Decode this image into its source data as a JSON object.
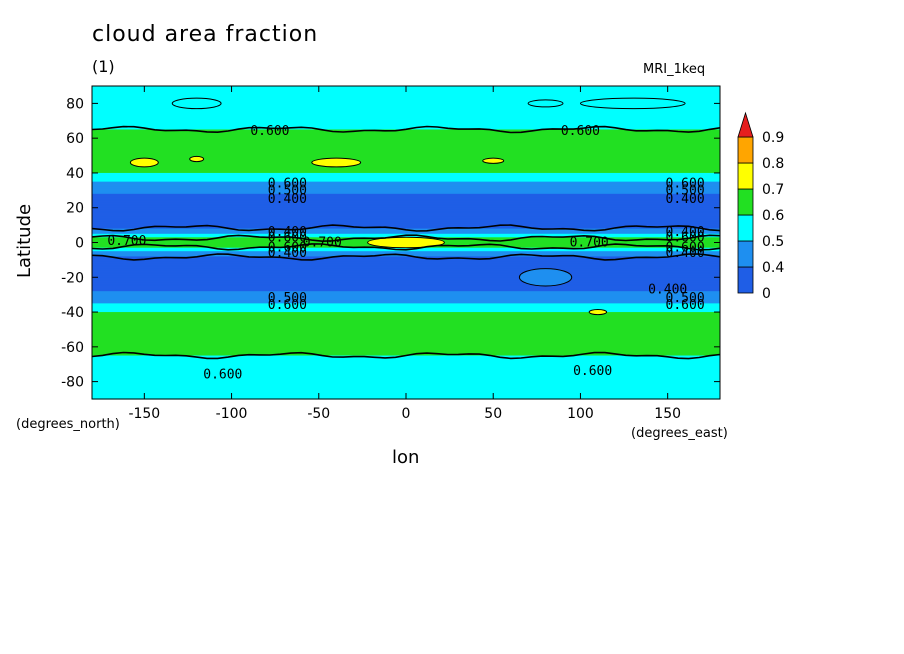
{
  "chart_data": {
    "type": "heatmap",
    "title": "cloud area fraction",
    "subtitle": "(1)",
    "model_label": "MRI_1keq",
    "xlabel": "lon",
    "ylabel": "Latitude",
    "x_units": "(degrees_east)",
    "y_units": "(degrees_north)",
    "xlim": [
      -180,
      180
    ],
    "ylim": [
      -90,
      90
    ],
    "x_ticks": [
      -150,
      -100,
      -50,
      0,
      50,
      100,
      150
    ],
    "y_ticks": [
      80,
      60,
      40,
      20,
      0,
      -20,
      -40,
      -60,
      -80
    ],
    "colorbar": {
      "levels": [
        "0",
        "0.4",
        "0.5",
        "0.6",
        "0.7",
        "0.8",
        "0.9"
      ],
      "colors": [
        "#1f5ee6",
        "#1e8ff0",
        "#00ffff",
        "#22e022",
        "#ffff00",
        "#ffa500",
        "#e61e1e"
      ]
    },
    "zonal_profile": {
      "lat": [
        -90,
        -80,
        -70,
        -60,
        -50,
        -40,
        -35,
        -28,
        -20,
        -10,
        -5,
        -2,
        0,
        2,
        5,
        10,
        20,
        28,
        35,
        40,
        50,
        60,
        70,
        80,
        90
      ],
      "value": [
        0.55,
        0.55,
        0.57,
        0.63,
        0.63,
        0.6,
        0.5,
        0.4,
        0.35,
        0.35,
        0.5,
        0.62,
        0.7,
        0.62,
        0.5,
        0.35,
        0.35,
        0.4,
        0.5,
        0.6,
        0.63,
        0.63,
        0.57,
        0.55,
        0.55
      ]
    },
    "contour_labels": [
      {
        "text": "0.600",
        "lon": -78,
        "lat": 64
      },
      {
        "text": "0.600",
        "lon": 100,
        "lat": 64
      },
      {
        "text": "0.600",
        "lon": -68,
        "lat": 34
      },
      {
        "text": "0.500",
        "lon": -68,
        "lat": 30
      },
      {
        "text": "0.400",
        "lon": -68,
        "lat": 25
      },
      {
        "text": "0.600",
        "lon": 160,
        "lat": 34
      },
      {
        "text": "0.500",
        "lon": 160,
        "lat": 30
      },
      {
        "text": "0.400",
        "lon": 160,
        "lat": 25
      },
      {
        "text": "0.400",
        "lon": -68,
        "lat": 6
      },
      {
        "text": "0.600",
        "lon": -68,
        "lat": 3
      },
      {
        "text": "0.700",
        "lon": -160,
        "lat": 1
      },
      {
        "text": "0.700",
        "lon": -48,
        "lat": 0
      },
      {
        "text": "0.700",
        "lon": 105,
        "lat": 0
      },
      {
        "text": "0.400",
        "lon": 160,
        "lat": 6
      },
      {
        "text": "0.600",
        "lon": 160,
        "lat": 3
      },
      {
        "text": "0.600",
        "lon": -68,
        "lat": -3
      },
      {
        "text": "0.400",
        "lon": -68,
        "lat": -6
      },
      {
        "text": "0.600",
        "lon": 160,
        "lat": -3
      },
      {
        "text": "0.400",
        "lon": 160,
        "lat": -6
      },
      {
        "text": "0.400",
        "lon": 150,
        "lat": -27
      },
      {
        "text": "0.500",
        "lon": -68,
        "lat": -32
      },
      {
        "text": "0.600",
        "lon": -68,
        "lat": -36
      },
      {
        "text": "0.500",
        "lon": 160,
        "lat": -32
      },
      {
        "text": "0.600",
        "lon": 160,
        "lat": -36
      },
      {
        "text": "0.600",
        "lon": -105,
        "lat": -76
      },
      {
        "text": "0.600",
        "lon": 107,
        "lat": -74
      }
    ],
    "blobs": [
      {
        "lon": -150,
        "lat": 46,
        "rlon": 8,
        "rlat": 2.5,
        "color": "#ffff00"
      },
      {
        "lon": -40,
        "lat": 46,
        "rlon": 14,
        "rlat": 2.5,
        "color": "#ffff00"
      },
      {
        "lon": 50,
        "lat": 47,
        "rlon": 6,
        "rlat": 1.5,
        "color": "#ffff00"
      },
      {
        "lon": -120,
        "lat": 48,
        "rlon": 4,
        "rlat": 1.5,
        "color": "#ffff00"
      },
      {
        "lon": 0,
        "lat": 0,
        "rlon": 22,
        "rlat": 3,
        "color": "#ffff00"
      },
      {
        "lon": 110,
        "lat": -40,
        "rlon": 5,
        "rlat": 1.5,
        "color": "#ffff00"
      },
      {
        "lon": 80,
        "lat": -20,
        "rlon": 15,
        "rlat": 5,
        "color": "#1e8ff0"
      },
      {
        "lon": -120,
        "lat": 80,
        "rlon": 14,
        "rlat": 3,
        "color": "#00ffff"
      },
      {
        "lon": 130,
        "lat": 80,
        "rlon": 30,
        "rlat": 3,
        "color": "#00ffff"
      },
      {
        "lon": 80,
        "lat": 80,
        "rlon": 10,
        "rlat": 2,
        "color": "#00ffff"
      }
    ]
  }
}
